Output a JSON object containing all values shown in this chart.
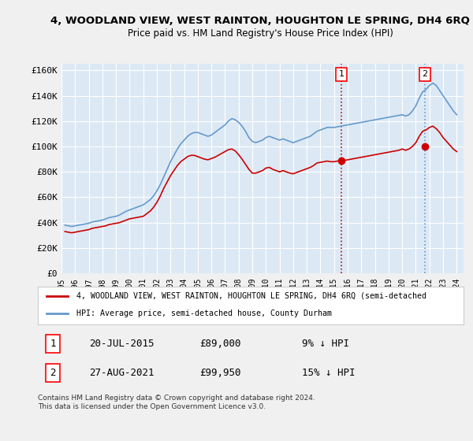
{
  "title": "4, WOODLAND VIEW, WEST RAINTON, HOUGHTON LE SPRING, DH4 6RQ",
  "subtitle": "Price paid vs. HM Land Registry's House Price Index (HPI)",
  "ylabel_ticks": [
    "£0",
    "£20K",
    "£40K",
    "£60K",
    "£80K",
    "£100K",
    "£120K",
    "£140K",
    "£160K"
  ],
  "ytick_values": [
    0,
    20000,
    40000,
    60000,
    80000,
    100000,
    120000,
    140000,
    160000
  ],
  "ylim": [
    0,
    165000
  ],
  "xlim_start": 1995.0,
  "xlim_end": 2024.5,
  "background_color": "#dce9f5",
  "plot_bg_color": "#dce9f5",
  "grid_color": "#ffffff",
  "red_line_color": "#cc0000",
  "blue_line_color": "#6699cc",
  "dashed_line_color": "#cc0000",
  "dashed_line2_color": "#6699cc",
  "marker1_date": 2015.55,
  "marker1_value": 89000,
  "marker2_date": 2021.65,
  "marker2_value": 99950,
  "legend_label1": "4, WOODLAND VIEW, WEST RAINTON, HOUGHTON LE SPRING, DH4 6RQ (semi-detached",
  "legend_label2": "HPI: Average price, semi-detached house, County Durham",
  "table_row1": [
    "1",
    "20-JUL-2015",
    "£89,000",
    "9% ↓ HPI"
  ],
  "table_row2": [
    "2",
    "27-AUG-2021",
    "£99,950",
    "15% ↓ HPI"
  ],
  "footer": "Contains HM Land Registry data © Crown copyright and database right 2024.\nThis data is licensed under the Open Government Licence v3.0.",
  "hpi_data": {
    "years": [
      1995.25,
      1995.5,
      1995.75,
      1996.0,
      1996.25,
      1996.5,
      1996.75,
      1997.0,
      1997.25,
      1997.5,
      1997.75,
      1998.0,
      1998.25,
      1998.5,
      1998.75,
      1999.0,
      1999.25,
      1999.5,
      1999.75,
      2000.0,
      2000.25,
      2000.5,
      2000.75,
      2001.0,
      2001.25,
      2001.5,
      2001.75,
      2002.0,
      2002.25,
      2002.5,
      2002.75,
      2003.0,
      2003.25,
      2003.5,
      2003.75,
      2004.0,
      2004.25,
      2004.5,
      2004.75,
      2005.0,
      2005.25,
      2005.5,
      2005.75,
      2006.0,
      2006.25,
      2006.5,
      2006.75,
      2007.0,
      2007.25,
      2007.5,
      2007.75,
      2008.0,
      2008.25,
      2008.5,
      2008.75,
      2009.0,
      2009.25,
      2009.5,
      2009.75,
      2010.0,
      2010.25,
      2010.5,
      2010.75,
      2011.0,
      2011.25,
      2011.5,
      2011.75,
      2012.0,
      2012.25,
      2012.5,
      2012.75,
      2013.0,
      2013.25,
      2013.5,
      2013.75,
      2014.0,
      2014.25,
      2014.5,
      2014.75,
      2015.0,
      2015.25,
      2015.5,
      2015.75,
      2016.0,
      2016.25,
      2016.5,
      2016.75,
      2017.0,
      2017.25,
      2017.5,
      2017.75,
      2018.0,
      2018.25,
      2018.5,
      2018.75,
      2019.0,
      2019.25,
      2019.5,
      2019.75,
      2020.0,
      2020.25,
      2020.5,
      2020.75,
      2021.0,
      2021.25,
      2021.5,
      2021.75,
      2022.0,
      2022.25,
      2022.5,
      2022.75,
      2023.0,
      2023.25,
      2023.5,
      2023.75,
      2024.0
    ],
    "values": [
      38000,
      37500,
      37000,
      37500,
      38000,
      38500,
      39000,
      39500,
      40500,
      41000,
      41500,
      42000,
      43000,
      44000,
      44500,
      45000,
      46000,
      47500,
      49000,
      50000,
      51000,
      52000,
      53000,
      54000,
      56000,
      58000,
      61000,
      65000,
      70000,
      76000,
      82000,
      88000,
      93000,
      98000,
      102000,
      105000,
      108000,
      110000,
      111000,
      111000,
      110000,
      109000,
      108000,
      109000,
      111000,
      113000,
      115000,
      117000,
      120000,
      122000,
      121000,
      119000,
      116000,
      112000,
      107000,
      104000,
      103000,
      104000,
      105000,
      107000,
      108000,
      107000,
      106000,
      105000,
      106000,
      105000,
      104000,
      103000,
      104000,
      105000,
      106000,
      107000,
      108000,
      110000,
      112000,
      113000,
      114000,
      115000,
      115000,
      115000,
      115500,
      116000,
      116500,
      117000,
      117500,
      118000,
      118500,
      119000,
      119500,
      120000,
      120500,
      121000,
      121500,
      122000,
      122500,
      123000,
      123500,
      124000,
      124500,
      125000,
      124000,
      125000,
      128000,
      132000,
      138000,
      143000,
      145000,
      148000,
      150000,
      148000,
      144000,
      140000,
      136000,
      132000,
      128000,
      125000
    ]
  },
  "property_data": {
    "years": [
      1995.25,
      1995.5,
      1995.75,
      1996.0,
      1996.25,
      1996.5,
      1996.75,
      1997.0,
      1997.25,
      1997.5,
      1997.75,
      1998.0,
      1998.25,
      1998.5,
      1998.75,
      1999.0,
      1999.25,
      1999.5,
      1999.75,
      2000.0,
      2000.25,
      2000.5,
      2000.75,
      2001.0,
      2001.25,
      2001.5,
      2001.75,
      2002.0,
      2002.25,
      2002.5,
      2002.75,
      2003.0,
      2003.25,
      2003.5,
      2003.75,
      2004.0,
      2004.25,
      2004.5,
      2004.75,
      2005.0,
      2005.25,
      2005.5,
      2005.75,
      2006.0,
      2006.25,
      2006.5,
      2006.75,
      2007.0,
      2007.25,
      2007.5,
      2007.75,
      2008.0,
      2008.25,
      2008.5,
      2008.75,
      2009.0,
      2009.25,
      2009.5,
      2009.75,
      2010.0,
      2010.25,
      2010.5,
      2010.75,
      2011.0,
      2011.25,
      2011.5,
      2011.75,
      2012.0,
      2012.25,
      2012.5,
      2012.75,
      2013.0,
      2013.25,
      2013.5,
      2013.75,
      2014.0,
      2014.25,
      2014.5,
      2014.75,
      2015.0,
      2015.25,
      2015.5,
      2015.75,
      2016.0,
      2016.25,
      2016.5,
      2016.75,
      2017.0,
      2017.25,
      2017.5,
      2017.75,
      2018.0,
      2018.25,
      2018.5,
      2018.75,
      2019.0,
      2019.25,
      2019.5,
      2019.75,
      2020.0,
      2020.25,
      2020.5,
      2020.75,
      2021.0,
      2021.25,
      2021.5,
      2021.75,
      2022.0,
      2022.25,
      2022.5,
      2022.75,
      2023.0,
      2023.25,
      2023.5,
      2023.75,
      2024.0
    ],
    "values": [
      33000,
      32500,
      32000,
      32500,
      33000,
      33500,
      34000,
      34500,
      35500,
      36000,
      36500,
      37000,
      37500,
      38500,
      39000,
      39500,
      40000,
      41000,
      42000,
      43000,
      43500,
      44000,
      44500,
      45000,
      47000,
      49000,
      52000,
      56000,
      61000,
      67000,
      72000,
      77000,
      81000,
      85000,
      88000,
      90000,
      92000,
      93000,
      93000,
      92000,
      91000,
      90000,
      89500,
      90500,
      91500,
      93000,
      94500,
      96000,
      97500,
      98000,
      96500,
      93500,
      90000,
      86000,
      82000,
      79000,
      79000,
      80000,
      81000,
      83000,
      83500,
      82000,
      81000,
      80000,
      81000,
      80000,
      79000,
      78500,
      79500,
      80500,
      81500,
      82500,
      83500,
      85000,
      87000,
      87500,
      88000,
      88500,
      88000,
      88000,
      88500,
      89000,
      89000,
      89500,
      90000,
      90500,
      91000,
      91500,
      92000,
      92500,
      93000,
      93500,
      94000,
      94500,
      95000,
      95500,
      96000,
      96500,
      97000,
      98000,
      97000,
      98000,
      100000,
      103000,
      108000,
      112000,
      113000,
      115000,
      116000,
      114000,
      111000,
      107000,
      104000,
      101000,
      98000,
      96000
    ]
  }
}
